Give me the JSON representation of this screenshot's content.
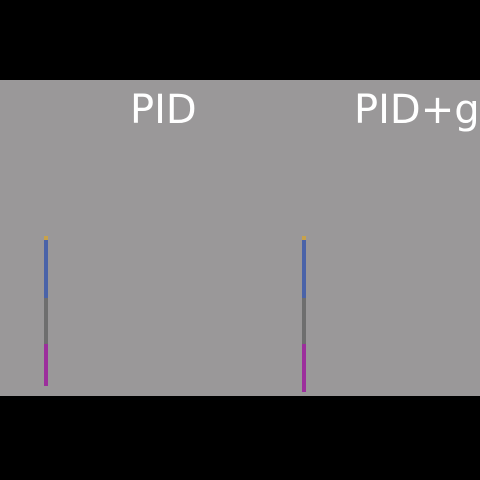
{
  "panels": {
    "left": {
      "title": "PID"
    },
    "right": {
      "title": "PID+g"
    }
  },
  "colors": {
    "page_background": "#000000",
    "stage_background": "#9a9899",
    "title_text": "#ffffff",
    "pendulum_tip": "#c8a24a",
    "pendulum_upper": "#4a63a8",
    "pendulum_middle": "#6e6e6e",
    "pendulum_lower": "#9c2f9c"
  }
}
